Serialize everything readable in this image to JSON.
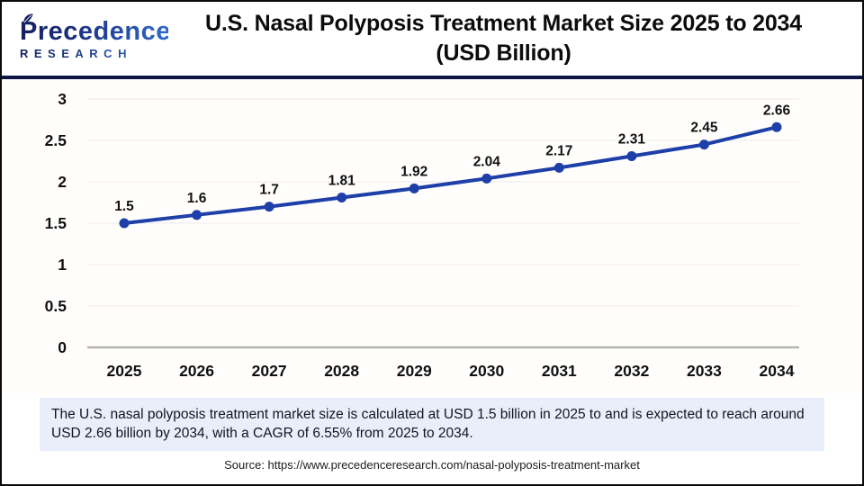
{
  "header": {
    "logo": {
      "word": "Precedence",
      "sub": "RESEARCH"
    },
    "title_line1": "U.S. Nasal Polyposis Treatment Market Size 2025 to 2034",
    "title_line2": "(USD Billion)"
  },
  "chart_data": {
    "type": "line",
    "title": "U.S. Nasal Polyposis Treatment Market Size 2025 to 2034 (USD Billion)",
    "categories": [
      "2025",
      "2026",
      "2027",
      "2028",
      "2029",
      "2030",
      "2031",
      "2032",
      "2033",
      "2034"
    ],
    "values": [
      1.5,
      1.6,
      1.7,
      1.81,
      1.92,
      2.04,
      2.17,
      2.31,
      2.45,
      2.66
    ],
    "data_labels": [
      "1.5",
      "1.6",
      "1.7",
      "1.81",
      "1.92",
      "2.04",
      "2.17",
      "2.31",
      "2.45",
      "2.66"
    ],
    "xlabel": "",
    "ylabel": "",
    "ylim": [
      0,
      3
    ],
    "yticks": [
      0,
      0.5,
      1,
      1.5,
      2,
      2.5,
      3
    ],
    "ytick_labels": [
      "0",
      "0.5",
      "1",
      "1.5",
      "2",
      "2.5",
      "3"
    ],
    "grid": true,
    "legend": false,
    "line_color": "#1e3fa8",
    "marker": "circle"
  },
  "footer": {
    "summary_lines": [
      "The U.S. nasal polyposis treatment market size is calculated at USD 1.5 billion in 2025 to and is expected to reach around",
      "USD 2.66 billion by 2034, with a CAGR of 6.55% from 2025 to 2034."
    ],
    "source": "Source: https://www.precedenceresearch.com/nasal-polyposis-treatment-market"
  },
  "colors": {
    "line": "#1e3fa8",
    "header_rule": "#0d1644",
    "summary_bg": "#e9effa",
    "grid": "#ececec",
    "axis": "#b3b3b3",
    "logo_navy": "#15205e",
    "logo_blue": "#2f6ac8"
  }
}
